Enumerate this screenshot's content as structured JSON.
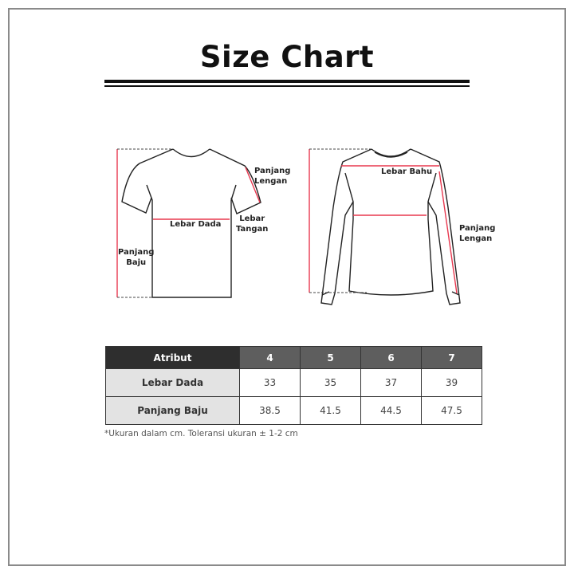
{
  "title": "Size Chart",
  "diagram": {
    "tshirt": {
      "panjang_lengan": [
        "Panjang",
        "Lengan"
      ],
      "lebar_tangan": [
        "Lebar",
        "Tangan"
      ],
      "lebar_dada": "Lebar Dada",
      "panjang_baju": [
        "Panjang",
        "Baju"
      ]
    },
    "longsleeve": {
      "lebar_bahu": "Lebar Bahu",
      "panjang_lengan": [
        "Panjang",
        "Lengan"
      ]
    },
    "measure_color": "#e8384f"
  },
  "table": {
    "headers": [
      "Atribut",
      "4",
      "5",
      "6",
      "7"
    ],
    "rows": [
      {
        "label": "Lebar Dada",
        "values": [
          "33",
          "35",
          "37",
          "39"
        ]
      },
      {
        "label": "Panjang Baju",
        "values": [
          "38.5",
          "41.5",
          "44.5",
          "47.5"
        ]
      }
    ]
  },
  "note": "*Ukuran dalam cm. Toleransi ukuran ± 1-2 cm"
}
